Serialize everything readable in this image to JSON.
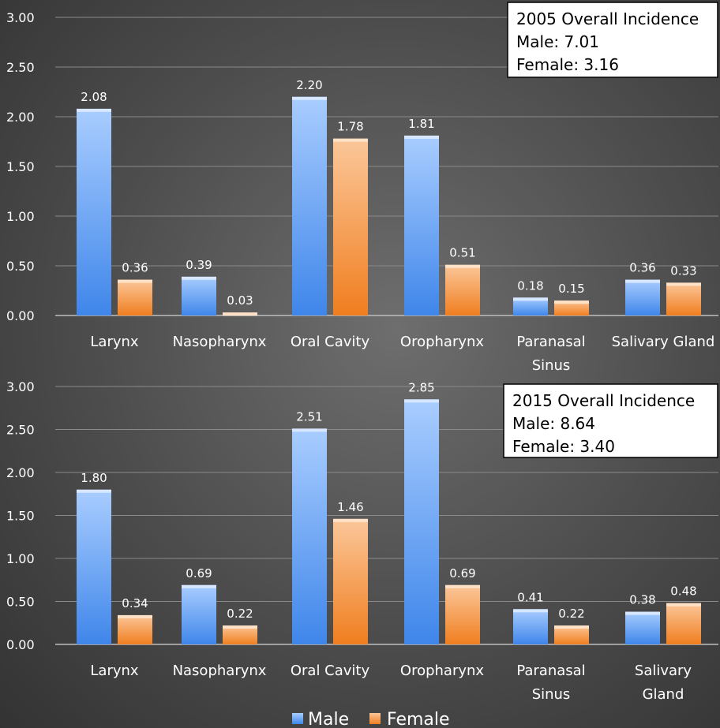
{
  "colors": {
    "male": "#5b9bf0",
    "female": "#f79646",
    "text": "#ffffff",
    "grid": "#8a8a8a"
  },
  "chart_data": [
    {
      "type": "bar",
      "title": "",
      "categories": [
        [
          "Larynx"
        ],
        [
          "Nasopharynx"
        ],
        [
          "Oral Cavity"
        ],
        [
          "Oropharynx"
        ],
        [
          "Paranasal",
          "Sinus"
        ],
        [
          "Salivary Gland"
        ]
      ],
      "series": [
        {
          "name": "Male",
          "values": [
            2.08,
            0.39,
            2.2,
            1.81,
            0.18,
            0.36
          ]
        },
        {
          "name": "Female",
          "values": [
            0.36,
            0.03,
            1.78,
            0.51,
            0.15,
            0.33
          ]
        }
      ],
      "value_labels": {
        "Male": [
          "2.08",
          "0.39",
          "2.20",
          "1.81",
          "0.18",
          "0.36"
        ],
        "Female": [
          "0.36",
          "0.03",
          "1.78",
          "0.51",
          "0.15",
          "0.33"
        ]
      },
      "yticks": [
        "0.00",
        "0.50",
        "1.00",
        "1.50",
        "2.00",
        "2.50",
        "3.00"
      ],
      "ylim": [
        0,
        3
      ],
      "grid": true,
      "annotation": [
        "2005 Overall Incidence",
        "Male: 7.01",
        "Female: 3.16"
      ]
    },
    {
      "type": "bar",
      "title": "",
      "categories": [
        [
          "Larynx"
        ],
        [
          "Nasopharynx"
        ],
        [
          "Oral Cavity"
        ],
        [
          "Oropharynx"
        ],
        [
          "Paranasal",
          "Sinus"
        ],
        [
          "Salivary",
          "Gland"
        ]
      ],
      "series": [
        {
          "name": "Male",
          "values": [
            1.8,
            0.69,
            2.51,
            2.85,
            0.41,
            0.38
          ]
        },
        {
          "name": "Female",
          "values": [
            0.34,
            0.22,
            1.46,
            0.69,
            0.22,
            0.48
          ]
        }
      ],
      "value_labels": {
        "Male": [
          "1.80",
          "0.69",
          "2.51",
          "2.85",
          "0.41",
          "0.38"
        ],
        "Female": [
          "0.34",
          "0.22",
          "1.46",
          "0.69",
          "0.22",
          "0.48"
        ]
      },
      "yticks": [
        "0.00",
        "0.50",
        "1.00",
        "1.50",
        "2.00",
        "2.50",
        "3.00"
      ],
      "ylim": [
        0,
        3
      ],
      "grid": true,
      "annotation": [
        "2015 Overall Incidence",
        "Male: 8.64",
        "Female: 3.40"
      ]
    }
  ],
  "legend": {
    "position": "bottom",
    "items": [
      "Male",
      "Female"
    ]
  }
}
